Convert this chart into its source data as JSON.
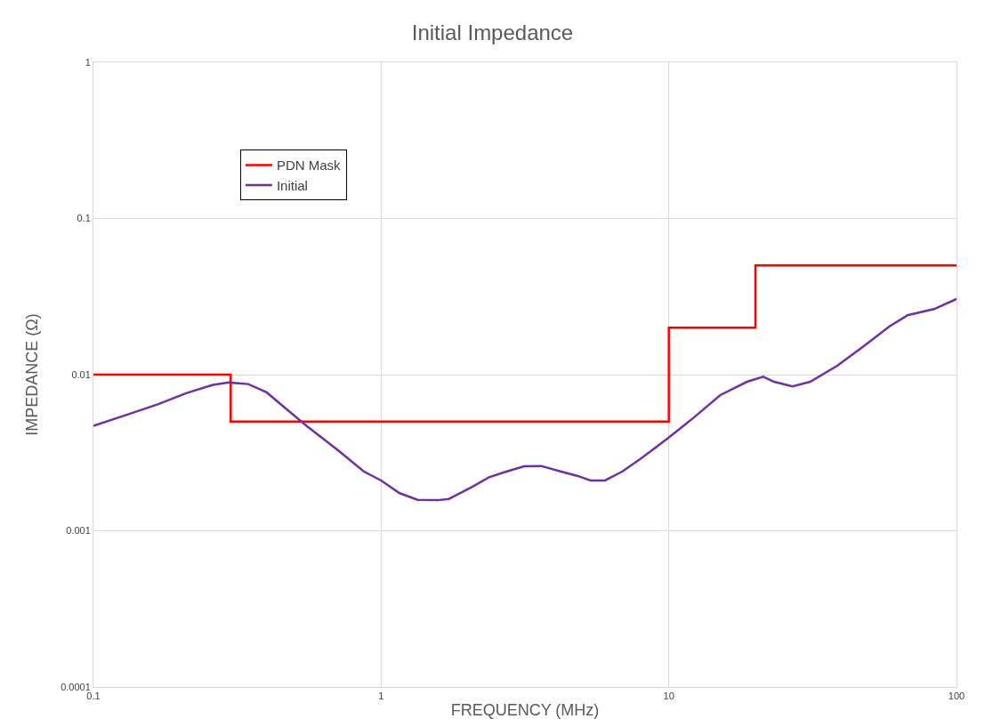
{
  "chart_data": {
    "type": "line",
    "title": "Initial Impedance",
    "xlabel": "FREQUENCY (MHz)",
    "ylabel": "IMPEDANCE (Ω)",
    "log": "xy",
    "grid": true,
    "legend": "top left",
    "marker": "none",
    "line_style": "solid",
    "xlim": [
      0.1,
      100
    ],
    "xticks": [
      0.1,
      1,
      10,
      100
    ],
    "ylim": [
      0.0001,
      1
    ],
    "yticks": [
      0.0001,
      0.001,
      0.01,
      0.1,
      1
    ],
    "series": [
      {
        "name": "PDN Mask",
        "color": "#ff0000",
        "type": "step",
        "x": [
          0.1,
          0.3,
          10,
          20,
          100
        ],
        "values": [
          0.01,
          0.005,
          0.02,
          0.05,
          0.05
        ]
      },
      {
        "name": "Initial",
        "color": "#7030a0",
        "x": [
          0.1,
          0.137,
          0.169,
          0.21,
          0.26,
          0.295,
          0.345,
          0.4,
          0.46,
          0.55,
          0.705,
          0.87,
          1,
          1.16,
          1.34,
          1.57,
          1.72,
          2.06,
          2.37,
          2.74,
          3.14,
          3.6,
          4.2,
          4.8,
          5.35,
          6,
          6.9,
          8,
          9.9,
          12.2,
          15.1,
          18.7,
          21.3,
          23.2,
          26.9,
          31,
          38.5,
          47.6,
          58.5,
          67.6,
          83.6,
          100
        ],
        "values": [
          0.0047,
          0.0057,
          0.0065,
          0.0076,
          0.0086,
          0.0089,
          0.0087,
          0.0077,
          0.0062,
          0.0047,
          0.0033,
          0.0024,
          0.0021,
          0.00174,
          0.00158,
          0.00157,
          0.0016,
          0.0019,
          0.0022,
          0.0024,
          0.00259,
          0.0026,
          0.0024,
          0.00225,
          0.0021,
          0.0021,
          0.0024,
          0.0029,
          0.0039,
          0.0053,
          0.0074,
          0.009,
          0.0097,
          0.009,
          0.0084,
          0.009,
          0.0114,
          0.0152,
          0.0204,
          0.024,
          0.0263,
          0.0305
        ]
      }
    ]
  }
}
